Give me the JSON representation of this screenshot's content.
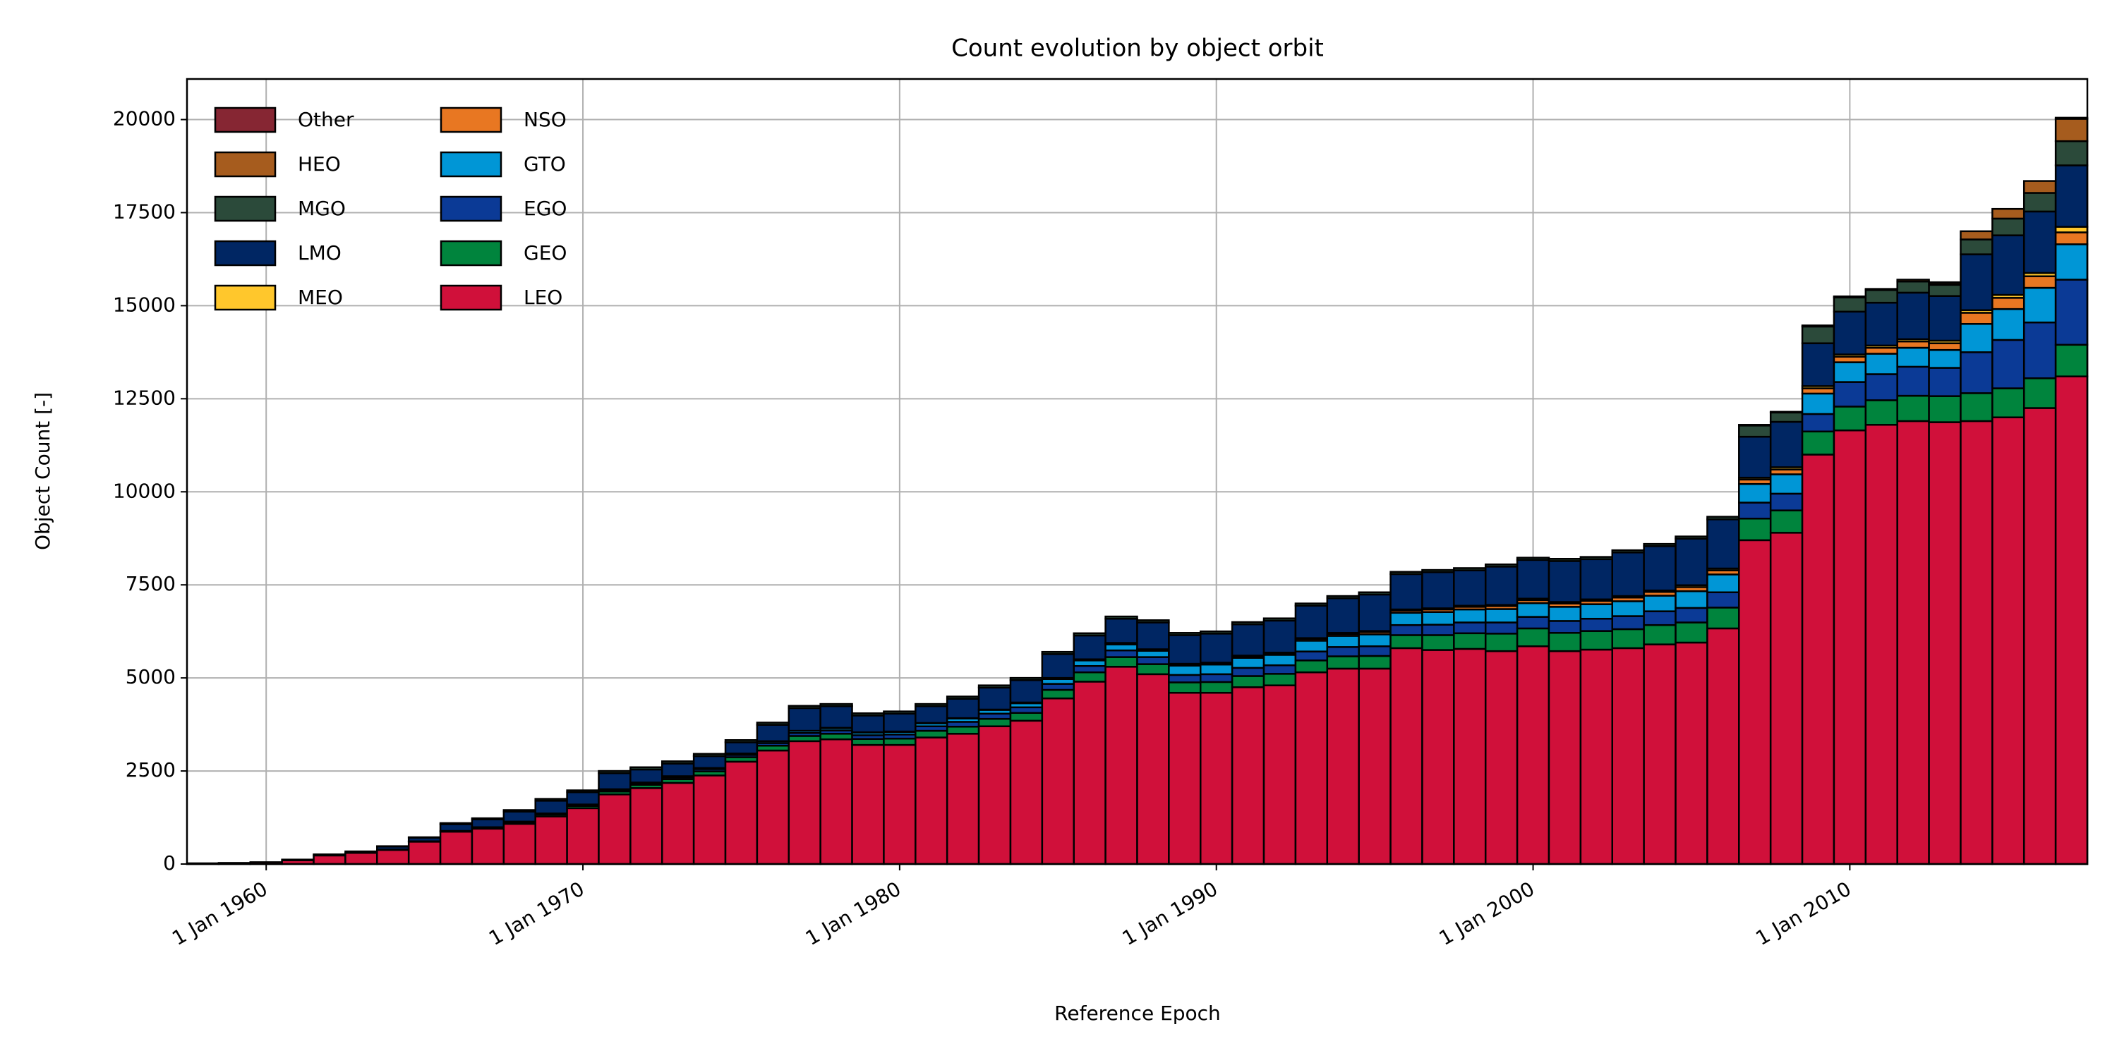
{
  "chart_data": {
    "type": "stacked_histogram",
    "title": "Count evolution by object orbit",
    "xlabel": "Reference Epoch",
    "ylabel": "Object Count [-]",
    "bins": [
      1957.5,
      1958.5,
      1959.5,
      1960.5,
      1961.5,
      1962.5,
      1963.5,
      1964.5,
      1965.5,
      1966.5,
      1967.5,
      1968.5,
      1969.5,
      1970.5,
      1971.5,
      1972.5,
      1973.5,
      1974.5,
      1975.5,
      1976.5,
      1977.5,
      1978.5,
      1979.5,
      1980.5,
      1981.5,
      1982.5,
      1983.5,
      1984.5,
      1985.5,
      1986.5,
      1987.5,
      1988.5,
      1989.5,
      1990.5,
      1991.5,
      1992.5,
      1993.5,
      1994.5,
      1995.5,
      1996.5,
      1997.5,
      1998.5,
      1999.5,
      2000.5,
      2001.5,
      2002.5,
      2003.5,
      2004.5,
      2005.5,
      2006.5,
      2007.5,
      2008.5,
      2009.5,
      2010.5,
      2011.5,
      2012.5,
      2013.5,
      2014.5,
      2015.5,
      2016.5,
      2017.5
    ],
    "xlim": [
      1957.5,
      2017.5
    ],
    "xticks": [
      {
        "value": 1960,
        "label": "1 Jan 1960"
      },
      {
        "value": 1970,
        "label": "1 Jan 1970"
      },
      {
        "value": 1980,
        "label": "1 Jan 1980"
      },
      {
        "value": 1990,
        "label": "1 Jan 1990"
      },
      {
        "value": 2000,
        "label": "1 Jan 2000"
      },
      {
        "value": 2010,
        "label": "1 Jan 2010"
      }
    ],
    "ylim": [
      0,
      21090
    ],
    "yticks": [
      0,
      2500,
      5000,
      7500,
      10000,
      12500,
      15000,
      17500,
      20000
    ],
    "grid": true,
    "legend": "upper left",
    "series": [
      {
        "name": "LEO",
        "color": "#d0103a",
        "values": [
          20,
          30,
          50,
          100,
          230,
          300,
          380,
          600,
          870,
          950,
          1080,
          1280,
          1500,
          1870,
          2040,
          2180,
          2380,
          2750,
          3050,
          3300,
          3350,
          3200,
          3200,
          3400,
          3500,
          3700,
          3850,
          4450,
          4900,
          5300,
          5100,
          4600,
          4600,
          4750,
          4800,
          5150,
          5250,
          5250,
          5800,
          5750,
          5780,
          5720,
          5850,
          5720,
          5760,
          5800,
          5900,
          5950,
          6330,
          8700,
          8900,
          11000,
          11650,
          11800,
          11900,
          11870,
          11900,
          12000,
          12250,
          13100
        ]
      },
      {
        "name": "GEO",
        "color": "#00843d",
        "values": [
          0,
          0,
          0,
          0,
          0,
          0,
          10,
          10,
          20,
          30,
          40,
          50,
          60,
          80,
          90,
          100,
          110,
          120,
          130,
          140,
          150,
          160,
          170,
          180,
          190,
          200,
          210,
          230,
          250,
          260,
          270,
          280,
          290,
          300,
          310,
          320,
          330,
          340,
          350,
          400,
          420,
          470,
          480,
          490,
          500,
          510,
          520,
          540,
          560,
          580,
          600,
          620,
          640,
          660,
          680,
          700,
          750,
          780,
          800,
          850
        ]
      },
      {
        "name": "EGO",
        "color": "#0b3a96",
        "values": [
          0,
          0,
          0,
          0,
          0,
          0,
          0,
          0,
          0,
          10,
          20,
          20,
          30,
          40,
          40,
          50,
          60,
          60,
          70,
          80,
          90,
          100,
          110,
          120,
          130,
          140,
          150,
          160,
          170,
          180,
          190,
          200,
          210,
          220,
          230,
          240,
          250,
          260,
          270,
          280,
          290,
          300,
          310,
          320,
          330,
          350,
          370,
          390,
          410,
          430,
          450,
          470,
          660,
          700,
          780,
          760,
          1100,
          1300,
          1500,
          1750
        ]
      },
      {
        "name": "GTO",
        "color": "#0096d6",
        "values": [
          0,
          0,
          0,
          0,
          0,
          0,
          0,
          0,
          0,
          0,
          0,
          10,
          10,
          20,
          20,
          30,
          30,
          40,
          50,
          60,
          60,
          70,
          70,
          80,
          90,
          100,
          110,
          130,
          150,
          160,
          170,
          250,
          260,
          270,
          280,
          290,
          300,
          320,
          330,
          340,
          350,
          360,
          370,
          380,
          390,
          400,
          420,
          450,
          480,
          500,
          520,
          550,
          530,
          550,
          510,
          480,
          760,
          830,
          930,
          950
        ]
      },
      {
        "name": "NSO",
        "color": "#e87722",
        "values": [
          0,
          0,
          0,
          0,
          0,
          0,
          0,
          0,
          0,
          0,
          0,
          0,
          0,
          0,
          0,
          0,
          0,
          0,
          0,
          0,
          10,
          10,
          10,
          10,
          10,
          10,
          20,
          20,
          20,
          30,
          30,
          30,
          30,
          40,
          40,
          50,
          50,
          60,
          60,
          70,
          70,
          80,
          80,
          90,
          90,
          100,
          100,
          110,
          110,
          120,
          130,
          140,
          150,
          160,
          170,
          180,
          300,
          300,
          310,
          320
        ]
      },
      {
        "name": "MEO",
        "color": "#ffc72c",
        "values": [
          0,
          0,
          0,
          0,
          0,
          0,
          0,
          0,
          0,
          0,
          0,
          0,
          0,
          0,
          0,
          0,
          0,
          0,
          0,
          0,
          0,
          0,
          0,
          0,
          0,
          0,
          0,
          10,
          10,
          10,
          10,
          20,
          20,
          20,
          20,
          20,
          30,
          30,
          30,
          30,
          30,
          30,
          40,
          40,
          40,
          40,
          40,
          50,
          50,
          50,
          60,
          60,
          60,
          60,
          60,
          70,
          70,
          80,
          90,
          150
        ]
      },
      {
        "name": "LMO",
        "color": "#002663",
        "values": [
          0,
          0,
          0,
          20,
          30,
          40,
          80,
          100,
          180,
          210,
          270,
          340,
          330,
          430,
          350,
          340,
          320,
          300,
          440,
          610,
          580,
          450,
          480,
          450,
          520,
          590,
          600,
          640,
          640,
          650,
          720,
          770,
          780,
          840,
          860,
          870,
          930,
          980,
          950,
          970,
          950,
          1030,
          1040,
          1100,
          1080,
          1170,
          1190,
          1250,
          1320,
          1100,
          1220,
          1150,
          1150,
          1150,
          1250,
          1200,
          1500,
          1600,
          1650,
          1650
        ]
      },
      {
        "name": "MGO",
        "color": "#2b4a3a",
        "values": [
          0,
          0,
          0,
          0,
          0,
          0,
          10,
          10,
          30,
          30,
          40,
          50,
          50,
          60,
          60,
          60,
          60,
          60,
          60,
          60,
          60,
          60,
          60,
          60,
          60,
          60,
          60,
          60,
          60,
          60,
          60,
          60,
          60,
          60,
          60,
          60,
          60,
          60,
          60,
          60,
          60,
          60,
          60,
          60,
          60,
          60,
          60,
          60,
          70,
          300,
          250,
          450,
          380,
          340,
          300,
          300,
          400,
          450,
          500,
          650
        ]
      },
      {
        "name": "HEO",
        "color": "#a65c1e",
        "values": [
          0,
          0,
          0,
          0,
          0,
          0,
          0,
          0,
          0,
          0,
          0,
          0,
          0,
          0,
          0,
          0,
          0,
          0,
          0,
          0,
          0,
          0,
          0,
          0,
          0,
          0,
          0,
          0,
          0,
          0,
          0,
          0,
          0,
          0,
          0,
          0,
          0,
          0,
          0,
          0,
          0,
          0,
          0,
          0,
          0,
          0,
          0,
          0,
          0,
          20,
          20,
          30,
          30,
          30,
          50,
          50,
          220,
          260,
          320,
          600
        ]
      },
      {
        "name": "Other",
        "color": "#862633",
        "values": [
          0,
          0,
          0,
          0,
          0,
          0,
          0,
          0,
          0,
          0,
          0,
          0,
          0,
          0,
          0,
          0,
          0,
          0,
          0,
          0,
          0,
          0,
          0,
          0,
          0,
          0,
          0,
          0,
          0,
          0,
          0,
          0,
          0,
          0,
          0,
          0,
          0,
          0,
          0,
          0,
          0,
          0,
          0,
          0,
          0,
          0,
          0,
          0,
          0,
          0,
          0,
          0,
          0,
          0,
          0,
          20,
          0,
          0,
          0,
          30
        ]
      }
    ]
  }
}
